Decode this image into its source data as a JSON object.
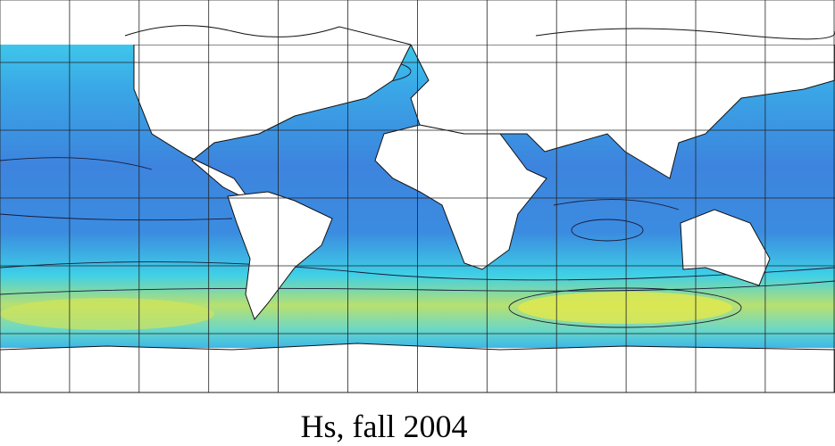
{
  "caption": "Hs, fall 2004"
}
